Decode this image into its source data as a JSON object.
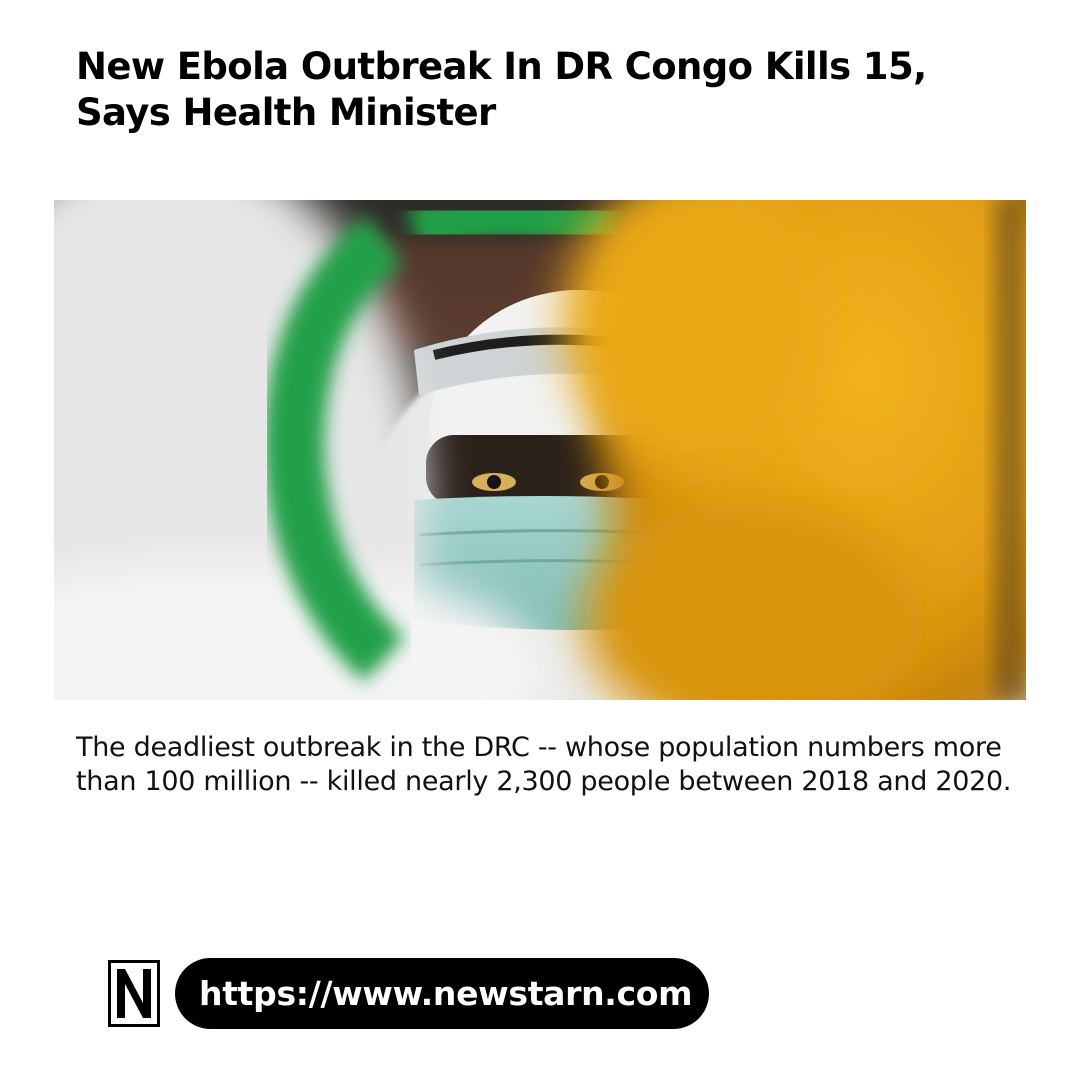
{
  "article": {
    "headline": "New Ebola Outbreak In DR Congo Kills 15, Says Health Minister",
    "summary": "The deadliest outbreak in the DRC -- whose population numbers more than 100 million -- killed nearly 2,300 people between 2018 and 2020."
  },
  "hero_image": {
    "alt": "Health worker in protective suit, goggles and face mask seen through a gap between yellow and green gloves"
  },
  "footer": {
    "logo_letter": "N",
    "url": "https://www.newstarn.com"
  },
  "colors": {
    "background": "#ffffff",
    "text": "#111111",
    "pill": "#000000",
    "pill_text": "#ffffff",
    "glove_yellow": "#e8a818",
    "glove_green": "#23a04a"
  }
}
